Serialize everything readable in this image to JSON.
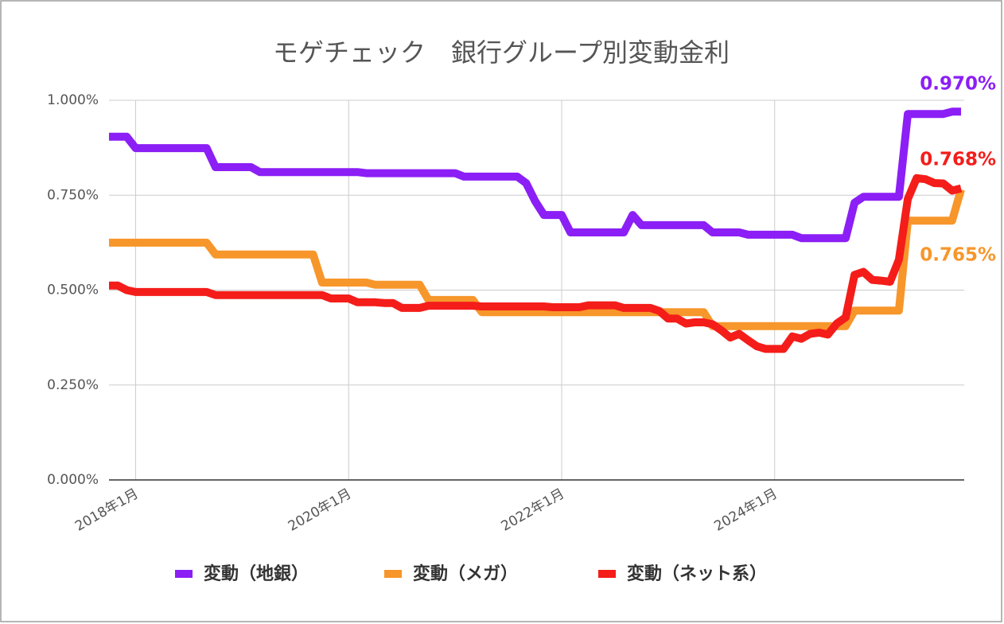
{
  "chart_data": {
    "type": "line",
    "title": "モゲチェック　銀行グループ別変動金利",
    "categories": [
      null,
      null,
      null,
      "2018年1月",
      null,
      null,
      null,
      null,
      null,
      null,
      null,
      null,
      null,
      null,
      null,
      null,
      null,
      null,
      null,
      null,
      null,
      null,
      null,
      null,
      null,
      null,
      null,
      "2020年1月",
      null,
      null,
      null,
      null,
      null,
      null,
      null,
      null,
      null,
      null,
      null,
      null,
      null,
      null,
      null,
      null,
      null,
      null,
      null,
      null,
      null,
      null,
      null,
      "2022年1月",
      null,
      null,
      null,
      null,
      null,
      null,
      null,
      null,
      null,
      null,
      null,
      null,
      null,
      null,
      null,
      null,
      null,
      null,
      null,
      null,
      null,
      null,
      null,
      "2024年1月",
      null,
      null,
      null,
      null,
      null,
      null,
      null,
      null,
      null,
      null,
      null,
      null,
      null,
      null,
      null,
      null,
      null,
      null,
      null,
      null,
      null
    ],
    "series": [
      {
        "name": "変動（地銀）",
        "color": "#8b1ff5",
        "end_label": "0.970%",
        "values": [
          0.904,
          0.904,
          0.904,
          0.874,
          0.874,
          0.874,
          0.874,
          0.874,
          0.874,
          0.874,
          0.874,
          0.874,
          0.824,
          0.824,
          0.824,
          0.824,
          0.824,
          0.811,
          0.811,
          0.811,
          0.811,
          0.811,
          0.811,
          0.811,
          0.811,
          0.811,
          0.811,
          0.811,
          0.811,
          0.808,
          0.808,
          0.808,
          0.808,
          0.808,
          0.808,
          0.808,
          0.808,
          0.808,
          0.808,
          0.808,
          0.799,
          0.799,
          0.799,
          0.799,
          0.799,
          0.799,
          0.799,
          0.782,
          0.735,
          0.698,
          0.698,
          0.698,
          0.652,
          0.652,
          0.652,
          0.652,
          0.652,
          0.652,
          0.652,
          0.698,
          0.671,
          0.671,
          0.671,
          0.671,
          0.671,
          0.671,
          0.671,
          0.671,
          0.652,
          0.652,
          0.652,
          0.652,
          0.646,
          0.646,
          0.646,
          0.646,
          0.646,
          0.646,
          0.637,
          0.637,
          0.637,
          0.637,
          0.637,
          0.637,
          0.73,
          0.746,
          0.746,
          0.746,
          0.746,
          0.746,
          0.964,
          0.964,
          0.964,
          0.964,
          0.964,
          0.97,
          0.97
        ]
      },
      {
        "name": "変動（メガ）",
        "color": "#f7962a",
        "end_label": "0.765%",
        "values": [
          0.625,
          0.625,
          0.625,
          0.625,
          0.625,
          0.625,
          0.625,
          0.625,
          0.625,
          0.625,
          0.625,
          0.625,
          0.594,
          0.594,
          0.594,
          0.594,
          0.594,
          0.594,
          0.594,
          0.594,
          0.594,
          0.594,
          0.594,
          0.594,
          0.52,
          0.52,
          0.52,
          0.52,
          0.52,
          0.52,
          0.514,
          0.514,
          0.514,
          0.514,
          0.514,
          0.514,
          0.474,
          0.474,
          0.474,
          0.474,
          0.474,
          0.474,
          0.442,
          0.442,
          0.442,
          0.442,
          0.442,
          0.442,
          0.442,
          0.442,
          0.442,
          0.442,
          0.442,
          0.442,
          0.442,
          0.442,
          0.442,
          0.442,
          0.442,
          0.442,
          0.442,
          0.442,
          0.442,
          0.442,
          0.442,
          0.442,
          0.442,
          0.442,
          0.405,
          0.405,
          0.405,
          0.405,
          0.405,
          0.405,
          0.405,
          0.405,
          0.405,
          0.405,
          0.405,
          0.405,
          0.405,
          0.405,
          0.405,
          0.405,
          0.446,
          0.446,
          0.446,
          0.446,
          0.446,
          0.446,
          0.683,
          0.683,
          0.683,
          0.683,
          0.683,
          0.683,
          0.765
        ]
      },
      {
        "name": "変動（ネット系）",
        "color": "#f41d1a",
        "end_label": "0.768%",
        "values": [
          0.512,
          0.512,
          0.5,
          0.495,
          0.495,
          0.495,
          0.495,
          0.495,
          0.495,
          0.495,
          0.495,
          0.495,
          0.487,
          0.487,
          0.487,
          0.487,
          0.487,
          0.487,
          0.487,
          0.487,
          0.487,
          0.487,
          0.487,
          0.487,
          0.487,
          0.478,
          0.478,
          0.478,
          0.468,
          0.468,
          0.468,
          0.466,
          0.466,
          0.453,
          0.453,
          0.453,
          0.459,
          0.459,
          0.459,
          0.459,
          0.459,
          0.459,
          0.457,
          0.457,
          0.457,
          0.457,
          0.457,
          0.457,
          0.457,
          0.457,
          0.455,
          0.455,
          0.455,
          0.455,
          0.46,
          0.46,
          0.46,
          0.46,
          0.453,
          0.453,
          0.453,
          0.453,
          0.445,
          0.425,
          0.425,
          0.412,
          0.415,
          0.415,
          0.41,
          0.394,
          0.375,
          0.385,
          0.368,
          0.352,
          0.345,
          0.345,
          0.345,
          0.378,
          0.372,
          0.385,
          0.388,
          0.383,
          0.412,
          0.428,
          0.54,
          0.548,
          0.527,
          0.525,
          0.522,
          0.58,
          0.74,
          0.795,
          0.792,
          0.782,
          0.781,
          0.762,
          0.768
        ]
      }
    ],
    "ylim": [
      0,
      1.0
    ],
    "yticks": [
      {
        "value": 0,
        "label": "0.000%"
      },
      {
        "value": 0.25,
        "label": "0.250%"
      },
      {
        "value": 0.5,
        "label": "0.500%"
      },
      {
        "value": 0.75,
        "label": "0.750%"
      },
      {
        "value": 1.0,
        "label": "1.000%"
      }
    ],
    "grid": true,
    "legend": "bottom"
  }
}
